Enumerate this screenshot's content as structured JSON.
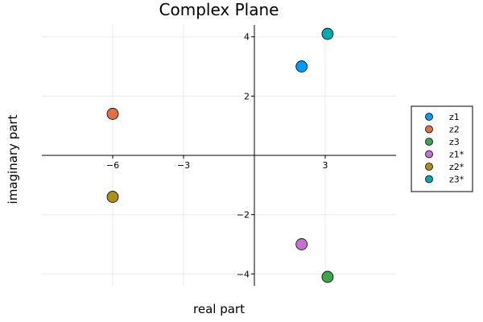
{
  "chart_data": {
    "type": "scatter",
    "title": "Complex Plane",
    "xlabel": "real part",
    "ylabel": "imaginary part",
    "xlim": [
      -9,
      6
    ],
    "ylim": [
      -4.4,
      4.4
    ],
    "xticks": [
      -6,
      -3,
      3
    ],
    "xtick_labels": [
      "−6",
      "−3",
      "3"
    ],
    "yticks": [
      4,
      2,
      -2,
      -4
    ],
    "ytick_labels": [
      "4",
      "2",
      "−2",
      "−4"
    ],
    "grid": true,
    "legend_position": "right",
    "series": [
      {
        "name": "z1",
        "color": "#009AFA",
        "x": [
          2
        ],
        "y": [
          3
        ]
      },
      {
        "name": "z2",
        "color": "#E36F47",
        "x": [
          -6
        ],
        "y": [
          1.4
        ]
      },
      {
        "name": "z3",
        "color": "#3EA44E",
        "x": [
          3.1
        ],
        "y": [
          -4.1
        ]
      },
      {
        "name": "z1*",
        "color": "#C371D2",
        "x": [
          2
        ],
        "y": [
          -3
        ]
      },
      {
        "name": "z2*",
        "color": "#AC8E18",
        "x": [
          -6
        ],
        "y": [
          -1.4
        ]
      },
      {
        "name": "z3*",
        "color": "#00A9AD",
        "x": [
          3.1
        ],
        "y": [
          4.1
        ]
      }
    ]
  }
}
